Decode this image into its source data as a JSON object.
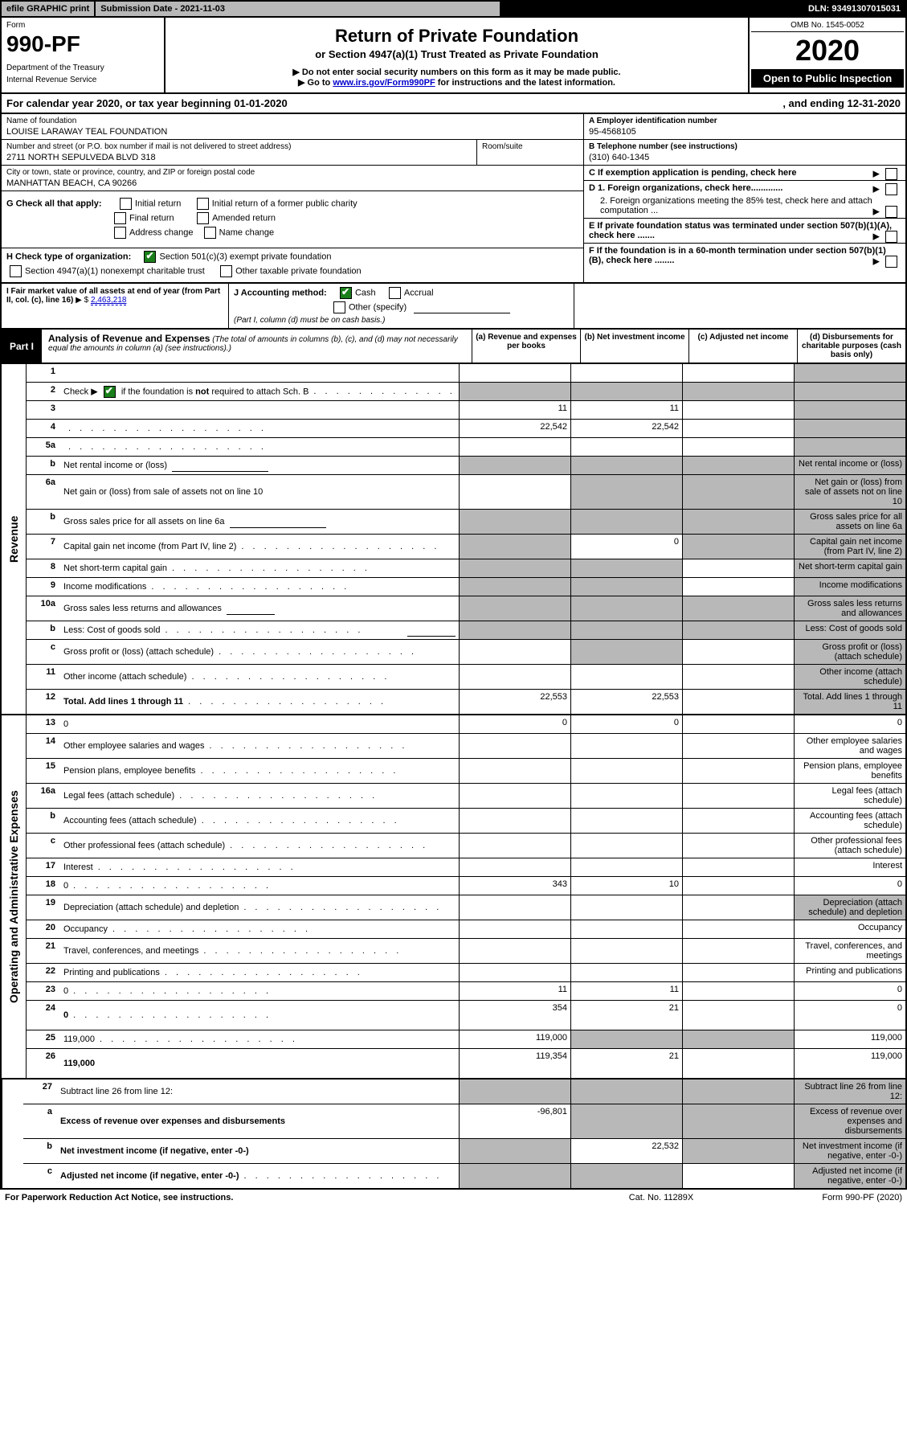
{
  "top": {
    "efile": "efile GRAPHIC print",
    "subdate": "Submission Date - 2021-11-03",
    "dln": "DLN: 93491307015031"
  },
  "header": {
    "form_label": "Form",
    "form_num": "990-PF",
    "dept1": "Department of the Treasury",
    "dept2": "Internal Revenue Service",
    "title": "Return of Private Foundation",
    "subtitle": "or Section 4947(a)(1) Trust Treated as Private Foundation",
    "instr1": "▶ Do not enter social security numbers on this form as it may be made public.",
    "instr2_pre": "▶ Go to ",
    "instr2_link": "www.irs.gov/Form990PF",
    "instr2_post": " for instructions and the latest information.",
    "omb": "OMB No. 1545-0052",
    "year": "2020",
    "open": "Open to Public Inspection"
  },
  "calyear": {
    "text": "For calendar year 2020, or tax year beginning 01-01-2020",
    "end": ", and ending 12-31-2020"
  },
  "entity": {
    "name_lbl": "Name of foundation",
    "name": "LOUISE LARAWAY TEAL FOUNDATION",
    "addr_lbl": "Number and street (or P.O. box number if mail is not delivered to street address)",
    "addr": "2711 NORTH SEPULVEDA BLVD 318",
    "room_lbl": "Room/suite",
    "city_lbl": "City or town, state or province, country, and ZIP or foreign postal code",
    "city": "MANHATTAN BEACH, CA  90266",
    "ein_lbl": "A Employer identification number",
    "ein": "95-4568105",
    "tel_lbl": "B Telephone number (see instructions)",
    "tel": "(310) 640-1345",
    "c_lbl": "C If exemption application is pending, check here",
    "d1": "D 1. Foreign organizations, check here.............",
    "d2": "2. Foreign organizations meeting the 85% test, check here and attach computation ...",
    "e": "E  If private foundation status was terminated under section 507(b)(1)(A), check here .......",
    "f": "F  If the foundation is in a 60-month termination under section 507(b)(1)(B), check here ........"
  },
  "checks": {
    "g_lbl": "G Check all that apply:",
    "g_initial": "Initial return",
    "g_initial_former": "Initial return of a former public charity",
    "g_final": "Final return",
    "g_amended": "Amended return",
    "g_addr": "Address change",
    "g_name": "Name change",
    "h_lbl": "H Check type of organization:",
    "h_501c3": "Section 501(c)(3) exempt private foundation",
    "h_4947": "Section 4947(a)(1) nonexempt charitable trust",
    "h_other": "Other taxable private foundation",
    "i_lbl": "I Fair market value of all assets at end of year (from Part II, col. (c), line 16)",
    "i_arrow": "▶ $",
    "i_val": "2,463,218",
    "j_lbl": "J Accounting method:",
    "j_cash": "Cash",
    "j_accrual": "Accrual",
    "j_other": "Other (specify)",
    "j_note": "(Part I, column (d) must be on cash basis.)"
  },
  "part1": {
    "label": "Part I",
    "title": "Analysis of Revenue and Expenses",
    "note": " (The total of amounts in columns (b), (c), and (d) may not necessarily equal the amounts in column (a) (see instructions).)",
    "cols": {
      "a": "(a)   Revenue and expenses per books",
      "b": "(b)   Net investment income",
      "c": "(c)   Adjusted net income",
      "d": "(d)   Disbursements for charitable purposes (cash basis only)"
    }
  },
  "revenue_label": "Revenue",
  "expense_label": "Operating and Administrative Expenses",
  "rows": [
    {
      "n": "1",
      "d": "",
      "a": "",
      "b": "",
      "c": "",
      "shade_d": true
    },
    {
      "n": "2",
      "d": "",
      "dots": true,
      "a": "",
      "b": "",
      "c": "",
      "shade_all": true,
      "check": true
    },
    {
      "n": "3",
      "d": "",
      "a": "11",
      "b": "11",
      "c": "",
      "shade_d": true
    },
    {
      "n": "4",
      "d": "",
      "dots": true,
      "a": "22,542",
      "b": "22,542",
      "c": "",
      "shade_d": true
    },
    {
      "n": "5a",
      "d": "",
      "dots": true,
      "a": "",
      "b": "",
      "c": "",
      "shade_d": true
    },
    {
      "n": "b",
      "d": "Net rental income or (loss)",
      "inline": true,
      "shade_all": true
    },
    {
      "n": "6a",
      "d": "Net gain or (loss) from sale of assets not on line 10",
      "a": "",
      "shade_bcd": true
    },
    {
      "n": "b",
      "d": "Gross sales price for all assets on line 6a",
      "inline": true,
      "shade_all": true
    },
    {
      "n": "7",
      "d": "Capital gain net income (from Part IV, line 2)",
      "dots": true,
      "shade_a": true,
      "b": "0",
      "shade_cd": true
    },
    {
      "n": "8",
      "d": "Net short-term capital gain",
      "dots": true,
      "shade_ab": true,
      "c": "",
      "shade_d": true
    },
    {
      "n": "9",
      "d": "Income modifications",
      "dots": true,
      "shade_ab": true,
      "c": "",
      "shade_d": true
    },
    {
      "n": "10a",
      "d": "Gross sales less returns and allowances",
      "inline_s": true,
      "shade_all": true
    },
    {
      "n": "b",
      "d": "Less: Cost of goods sold",
      "dots": true,
      "inline_s": true,
      "shade_all": true
    },
    {
      "n": "c",
      "d": "Gross profit or (loss) (attach schedule)",
      "dots": true,
      "a": "",
      "shade_b": true,
      "c": "",
      "shade_d": true
    },
    {
      "n": "11",
      "d": "Other income (attach schedule)",
      "dots": true,
      "a": "",
      "b": "",
      "c": "",
      "shade_d": true
    },
    {
      "n": "12",
      "d": "Total. Add lines 1 through 11",
      "dots": true,
      "bold": true,
      "a": "22,553",
      "b": "22,553",
      "c": "",
      "shade_d": true
    }
  ],
  "exp_rows": [
    {
      "n": "13",
      "d": "0",
      "a": "0",
      "b": "0",
      "c": ""
    },
    {
      "n": "14",
      "d": "Other employee salaries and wages",
      "dots": true
    },
    {
      "n": "15",
      "d": "Pension plans, employee benefits",
      "dots": true
    },
    {
      "n": "16a",
      "d": "Legal fees (attach schedule)",
      "dots": true
    },
    {
      "n": "b",
      "d": "Accounting fees (attach schedule)",
      "dots": true
    },
    {
      "n": "c",
      "d": "Other professional fees (attach schedule)",
      "dots": true
    },
    {
      "n": "17",
      "d": "Interest",
      "dots": true
    },
    {
      "n": "18",
      "d": "0",
      "dots": true,
      "a": "343",
      "b": "10",
      "c": ""
    },
    {
      "n": "19",
      "d": "Depreciation (attach schedule) and depletion",
      "dots": true,
      "shade_d": true
    },
    {
      "n": "20",
      "d": "Occupancy",
      "dots": true
    },
    {
      "n": "21",
      "d": "Travel, conferences, and meetings",
      "dots": true
    },
    {
      "n": "22",
      "d": "Printing and publications",
      "dots": true
    },
    {
      "n": "23",
      "d": "0",
      "dots": true,
      "a": "11",
      "b": "11",
      "c": ""
    },
    {
      "n": "24",
      "d": "0",
      "dots": true,
      "bold": true,
      "a": "354",
      "b": "21",
      "c": "",
      "two_line": true
    },
    {
      "n": "25",
      "d": "119,000",
      "dots": true,
      "a": "119,000",
      "shade_bc": true
    },
    {
      "n": "26",
      "d": "119,000",
      "bold": true,
      "a": "119,354",
      "b": "21",
      "c": "",
      "two_line": true
    }
  ],
  "net_rows": [
    {
      "n": "27",
      "d": "Subtract line 26 from line 12:",
      "shade_all": true
    },
    {
      "n": "a",
      "d": "Excess of revenue over expenses and disbursements",
      "bold": true,
      "a": "-96,801",
      "shade_bcd": true
    },
    {
      "n": "b",
      "d": "Net investment income (if negative, enter -0-)",
      "bold": true,
      "shade_a": true,
      "b": "22,532",
      "shade_cd": true
    },
    {
      "n": "c",
      "d": "Adjusted net income (if negative, enter -0-)",
      "bold": true,
      "dots": true,
      "shade_ab": true,
      "c": "",
      "shade_d": true
    }
  ],
  "footer": {
    "f1": "For Paperwork Reduction Act Notice, see instructions.",
    "f2": "Cat. No. 11289X",
    "f3": "Form 990-PF (2020)"
  }
}
